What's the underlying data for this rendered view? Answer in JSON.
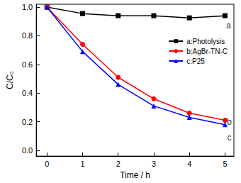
{
  "chart_data": {
    "type": "line",
    "x_label": "Time / h",
    "y_label": "C/C₀",
    "xlim": [
      -0.3,
      5.25
    ],
    "xticks": [
      0,
      1,
      2,
      3,
      4,
      5
    ],
    "ylim": [
      -0.04,
      1.02
    ],
    "yticks": [
      {
        "value": 0,
        "label": "0.0"
      },
      {
        "value": 0.2,
        "label": "0.2"
      },
      {
        "value": 0.4,
        "label": "0.4"
      },
      {
        "value": 0.6,
        "label": "0.6"
      },
      {
        "value": 0.8,
        "label": "0.8"
      },
      {
        "value": 1.0,
        "label": "1.0"
      }
    ],
    "grid": false,
    "legend": "right",
    "x": [
      0,
      1,
      2,
      3,
      4,
      5
    ],
    "series": [
      {
        "name": "a:Photolysis",
        "color": "#000000",
        "marker": "square",
        "values": [
          1.0,
          0.955,
          0.94,
          0.94,
          0.925,
          0.94
        ]
      },
      {
        "name": "b:AgBr-TN-C",
        "color": "#ff0000",
        "marker": "circle",
        "values": [
          1.0,
          0.74,
          0.51,
          0.36,
          0.26,
          0.21
        ]
      },
      {
        "name": "c:P25",
        "color": "#0000ff",
        "marker": "triangle",
        "values": [
          1.0,
          0.69,
          0.46,
          0.31,
          0.23,
          0.18
        ]
      }
    ],
    "annotations": [
      {
        "text": "a",
        "x": 5.1,
        "y": 0.87
      },
      {
        "text": "b",
        "x": 5.12,
        "y": 0.2
      },
      {
        "text": "c",
        "x": 5.12,
        "y": 0.09
      }
    ]
  }
}
